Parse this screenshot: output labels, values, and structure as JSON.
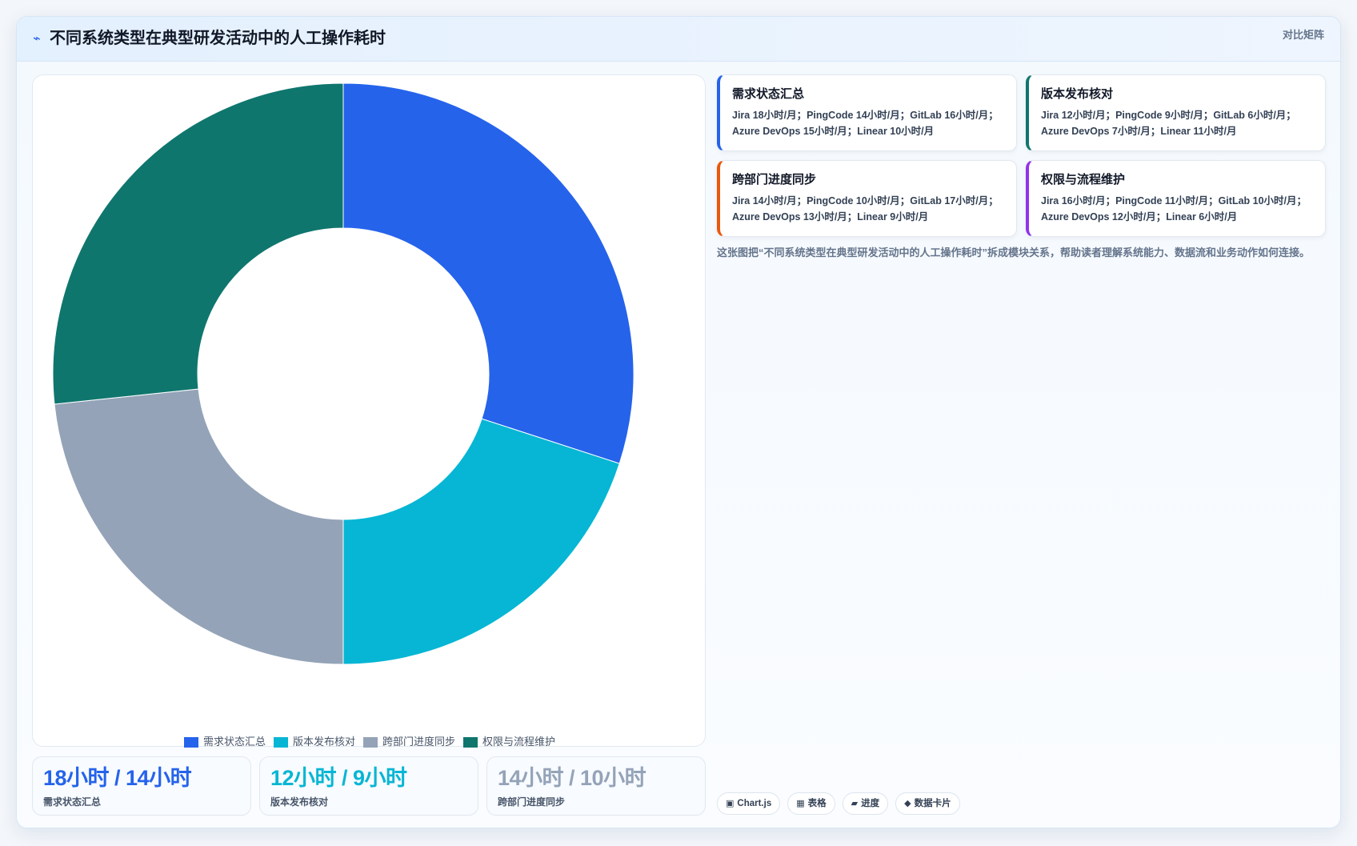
{
  "header": {
    "icon": "chart-icon",
    "icon_glyph": "⌁",
    "title": "不同系统类型在典型研发活动中的人工操作耗时",
    "tag": "对比矩阵"
  },
  "chart_data": {
    "type": "pie",
    "variant": "doughnut",
    "categories": [
      "需求状态汇总",
      "版本发布核对",
      "跨部门进度同步",
      "权限与流程维护"
    ],
    "values": [
      18,
      12,
      14,
      16
    ],
    "unit": "小时/月",
    "series_source": "Jira",
    "colors": [
      "#2563eb",
      "#06b6d4",
      "#94a3b8",
      "#0f766e"
    ],
    "legend_position": "bottom"
  },
  "kpis": [
    {
      "value": "18小时 / 14小时",
      "label": "需求状态汇总",
      "color": "#2563eb"
    },
    {
      "value": "12小时 / 9小时",
      "label": "版本发布核对",
      "color": "#06b6d4"
    },
    {
      "value": "14小时 / 10小时",
      "label": "跨部门进度同步",
      "color": "#94a3b8"
    }
  ],
  "info_cards": [
    {
      "title": "需求状态汇总",
      "text": "Jira 18小时/月；PingCode 14小时/月；GitLab 16小时/月；Azure DevOps 15小时/月；Linear 10小时/月",
      "accent": "#2563eb"
    },
    {
      "title": "版本发布核对",
      "text": "Jira 12小时/月；PingCode 9小时/月；GitLab 6小时/月；Azure DevOps 7小时/月；Linear 11小时/月",
      "accent": "#0f766e"
    },
    {
      "title": "跨部门进度同步",
      "text": "Jira 14小时/月；PingCode 10小时/月；GitLab 17小时/月；Azure DevOps 13小时/月；Linear 9小时/月",
      "accent": "#ea580c"
    },
    {
      "title": "权限与流程维护",
      "text": "Jira 16小时/月；PingCode 11小时/月；GitLab 10小时/月；Azure DevOps 12小时/月；Linear 6小时/月",
      "accent": "#9333ea"
    }
  ],
  "description": "这张图把“不同系统类型在典型研发活动中的人工操作耗时”拆成模块关系，帮助读者理解系统能力、数据流和业务动作如何连接。",
  "chips": [
    {
      "icon": "chart-icon",
      "glyph": "▣",
      "label": "Chart.js"
    },
    {
      "icon": "table-icon",
      "glyph": "▦",
      "label": "表格"
    },
    {
      "icon": "progress-icon",
      "glyph": "▰",
      "label": "进度"
    },
    {
      "icon": "diamond-icon",
      "glyph": "◆",
      "label": "数据卡片"
    }
  ]
}
